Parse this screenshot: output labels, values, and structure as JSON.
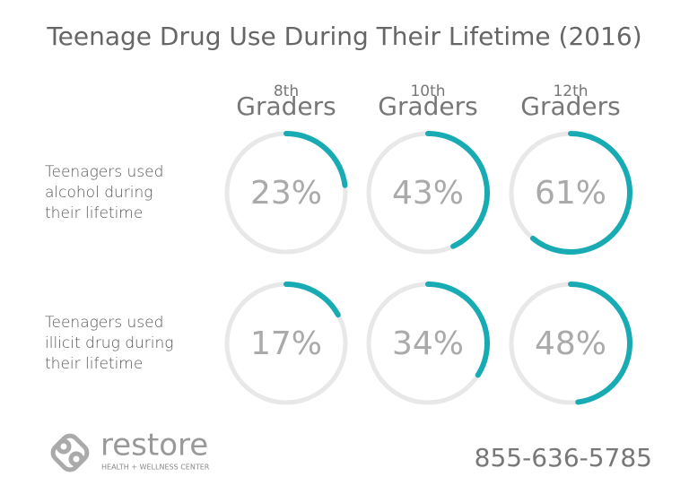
{
  "chart_data": {
    "type": "ring",
    "title": "Teenage Drug Use During Their Lifetime (2016)",
    "columns": [
      {
        "grade": "8th",
        "label": "Graders"
      },
      {
        "grade": "10th",
        "label": "Graders"
      },
      {
        "grade": "12th",
        "label": "Graders"
      }
    ],
    "series": [
      {
        "name": "Teenagers used alcohol during their lifetime",
        "values": [
          23,
          43,
          61
        ],
        "value_labels": [
          "23%",
          "43%",
          "61%"
        ]
      },
      {
        "name": "Teenagers used illicit drug during their lifetime",
        "values": [
          17,
          34,
          48
        ],
        "value_labels": [
          "17%",
          "34%",
          "48%"
        ]
      }
    ],
    "color": "#19abb4",
    "track_color": "#e8e8e8",
    "max": 100
  },
  "footer": {
    "brand": "restore",
    "tagline": "HEALTH + WELLNESS CENTER",
    "phone": "855-636-5785"
  }
}
